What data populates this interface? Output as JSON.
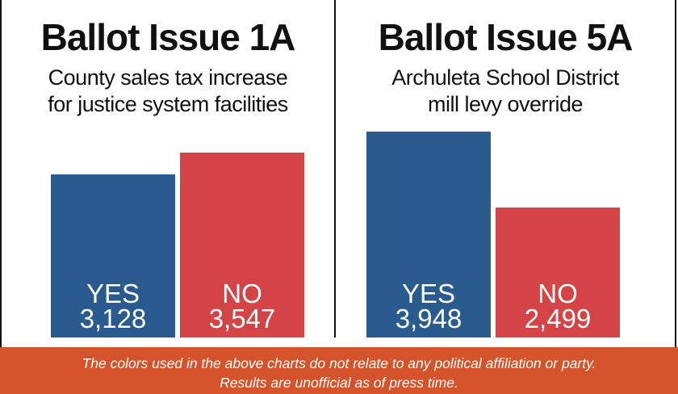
{
  "colors": {
    "yes": "#2a5b8f",
    "no": "#d44346",
    "footer": "#d4532a"
  },
  "chart_data": [
    {
      "type": "bar",
      "title": "Ballot Issue 1A",
      "subtitle_lines": [
        "County sales tax increase",
        "for justice system facilities"
      ],
      "categories": [
        "YES",
        "NO"
      ],
      "values": [
        3128,
        3547
      ],
      "value_labels": [
        "3,128",
        "3,547"
      ]
    },
    {
      "type": "bar",
      "title": "Ballot Issue 5A",
      "subtitle_lines": [
        "Archuleta School District",
        "mill levy override"
      ],
      "categories": [
        "YES",
        "NO"
      ],
      "values": [
        3948,
        2499
      ],
      "value_labels": [
        "3,948",
        "2,499"
      ]
    }
  ],
  "footer": {
    "line1": "The colors used in the above charts do not relate to any political affiliation or party.",
    "line2": "Results are unofficial as of press time."
  }
}
